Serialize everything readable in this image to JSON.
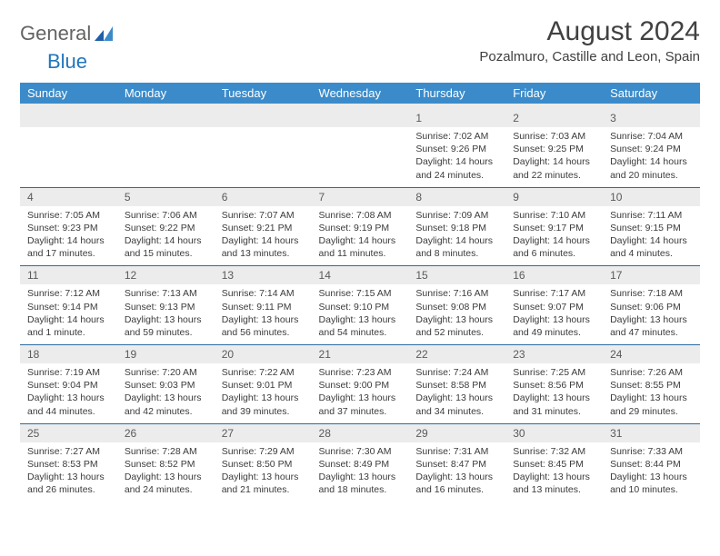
{
  "logo": {
    "text_main": "General",
    "text_blue": "Blue"
  },
  "header": {
    "month_title": "August 2024",
    "location": "Pozalmuro, Castille and Leon, Spain"
  },
  "colors": {
    "header_bar": "#3b8bca",
    "header_text": "#ffffff",
    "daynum_bg": "#ececec",
    "week_divider": "#2c6aa0",
    "body_text": "#3b3b3b",
    "title_text": "#414141",
    "logo_gray": "#646464",
    "logo_blue": "#2176bd"
  },
  "day_names": [
    "Sunday",
    "Monday",
    "Tuesday",
    "Wednesday",
    "Thursday",
    "Friday",
    "Saturday"
  ],
  "weeks": [
    [
      null,
      null,
      null,
      null,
      {
        "n": "1",
        "sr": "7:02 AM",
        "ss": "9:26 PM",
        "dl": "14 hours and 24 minutes."
      },
      {
        "n": "2",
        "sr": "7:03 AM",
        "ss": "9:25 PM",
        "dl": "14 hours and 22 minutes."
      },
      {
        "n": "3",
        "sr": "7:04 AM",
        "ss": "9:24 PM",
        "dl": "14 hours and 20 minutes."
      }
    ],
    [
      {
        "n": "4",
        "sr": "7:05 AM",
        "ss": "9:23 PM",
        "dl": "14 hours and 17 minutes."
      },
      {
        "n": "5",
        "sr": "7:06 AM",
        "ss": "9:22 PM",
        "dl": "14 hours and 15 minutes."
      },
      {
        "n": "6",
        "sr": "7:07 AM",
        "ss": "9:21 PM",
        "dl": "14 hours and 13 minutes."
      },
      {
        "n": "7",
        "sr": "7:08 AM",
        "ss": "9:19 PM",
        "dl": "14 hours and 11 minutes."
      },
      {
        "n": "8",
        "sr": "7:09 AM",
        "ss": "9:18 PM",
        "dl": "14 hours and 8 minutes."
      },
      {
        "n": "9",
        "sr": "7:10 AM",
        "ss": "9:17 PM",
        "dl": "14 hours and 6 minutes."
      },
      {
        "n": "10",
        "sr": "7:11 AM",
        "ss": "9:15 PM",
        "dl": "14 hours and 4 minutes."
      }
    ],
    [
      {
        "n": "11",
        "sr": "7:12 AM",
        "ss": "9:14 PM",
        "dl": "14 hours and 1 minute."
      },
      {
        "n": "12",
        "sr": "7:13 AM",
        "ss": "9:13 PM",
        "dl": "13 hours and 59 minutes."
      },
      {
        "n": "13",
        "sr": "7:14 AM",
        "ss": "9:11 PM",
        "dl": "13 hours and 56 minutes."
      },
      {
        "n": "14",
        "sr": "7:15 AM",
        "ss": "9:10 PM",
        "dl": "13 hours and 54 minutes."
      },
      {
        "n": "15",
        "sr": "7:16 AM",
        "ss": "9:08 PM",
        "dl": "13 hours and 52 minutes."
      },
      {
        "n": "16",
        "sr": "7:17 AM",
        "ss": "9:07 PM",
        "dl": "13 hours and 49 minutes."
      },
      {
        "n": "17",
        "sr": "7:18 AM",
        "ss": "9:06 PM",
        "dl": "13 hours and 47 minutes."
      }
    ],
    [
      {
        "n": "18",
        "sr": "7:19 AM",
        "ss": "9:04 PM",
        "dl": "13 hours and 44 minutes."
      },
      {
        "n": "19",
        "sr": "7:20 AM",
        "ss": "9:03 PM",
        "dl": "13 hours and 42 minutes."
      },
      {
        "n": "20",
        "sr": "7:22 AM",
        "ss": "9:01 PM",
        "dl": "13 hours and 39 minutes."
      },
      {
        "n": "21",
        "sr": "7:23 AM",
        "ss": "9:00 PM",
        "dl": "13 hours and 37 minutes."
      },
      {
        "n": "22",
        "sr": "7:24 AM",
        "ss": "8:58 PM",
        "dl": "13 hours and 34 minutes."
      },
      {
        "n": "23",
        "sr": "7:25 AM",
        "ss": "8:56 PM",
        "dl": "13 hours and 31 minutes."
      },
      {
        "n": "24",
        "sr": "7:26 AM",
        "ss": "8:55 PM",
        "dl": "13 hours and 29 minutes."
      }
    ],
    [
      {
        "n": "25",
        "sr": "7:27 AM",
        "ss": "8:53 PM",
        "dl": "13 hours and 26 minutes."
      },
      {
        "n": "26",
        "sr": "7:28 AM",
        "ss": "8:52 PM",
        "dl": "13 hours and 24 minutes."
      },
      {
        "n": "27",
        "sr": "7:29 AM",
        "ss": "8:50 PM",
        "dl": "13 hours and 21 minutes."
      },
      {
        "n": "28",
        "sr": "7:30 AM",
        "ss": "8:49 PM",
        "dl": "13 hours and 18 minutes."
      },
      {
        "n": "29",
        "sr": "7:31 AM",
        "ss": "8:47 PM",
        "dl": "13 hours and 16 minutes."
      },
      {
        "n": "30",
        "sr": "7:32 AM",
        "ss": "8:45 PM",
        "dl": "13 hours and 13 minutes."
      },
      {
        "n": "31",
        "sr": "7:33 AM",
        "ss": "8:44 PM",
        "dl": "13 hours and 10 minutes."
      }
    ]
  ],
  "labels": {
    "sunrise": "Sunrise: ",
    "sunset": "Sunset: ",
    "daylight": "Daylight: "
  }
}
